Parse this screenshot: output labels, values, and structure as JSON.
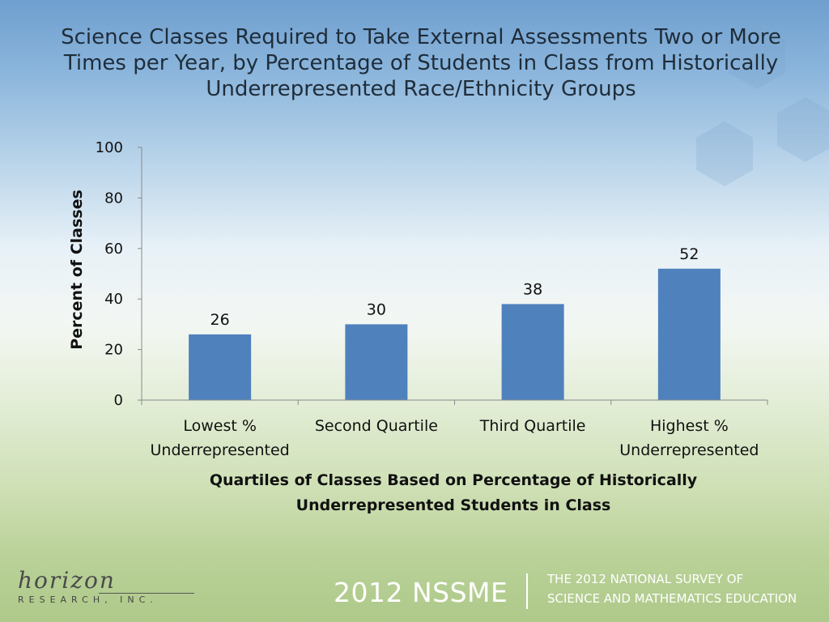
{
  "header": {
    "title": "Science Classes Required to Take External Assessments Two or More Times per Year, by Percentage of Students in Class from Historically Underrepresented Race/Ethnicity Groups"
  },
  "chart_data": {
    "type": "bar",
    "categories": [
      "Lowest % Underrepresented",
      "Second Quartile",
      "Third Quartile",
      "Highest % Underrepresented"
    ],
    "values": [
      26,
      30,
      38,
      52
    ],
    "xlabel": "Quartiles of Classes Based on Percentage of Historically Underrepresented Students in Class",
    "ylabel": "Percent of Classes",
    "ylim": [
      0,
      100
    ],
    "yticks": [
      "0",
      "20",
      "40",
      "60",
      "80",
      "100"
    ],
    "bar_color": "#4f81bd",
    "grid": false,
    "legend": "none"
  },
  "footer": {
    "logo_script": "horizon",
    "logo_subtitle": "RESEARCH, INC.",
    "survey_short": "2012 NSSME",
    "survey_full_line1": "THE 2012 NATIONAL SURVEY OF",
    "survey_full_line2": "SCIENCE AND MATHEMATICS EDUCATION"
  }
}
